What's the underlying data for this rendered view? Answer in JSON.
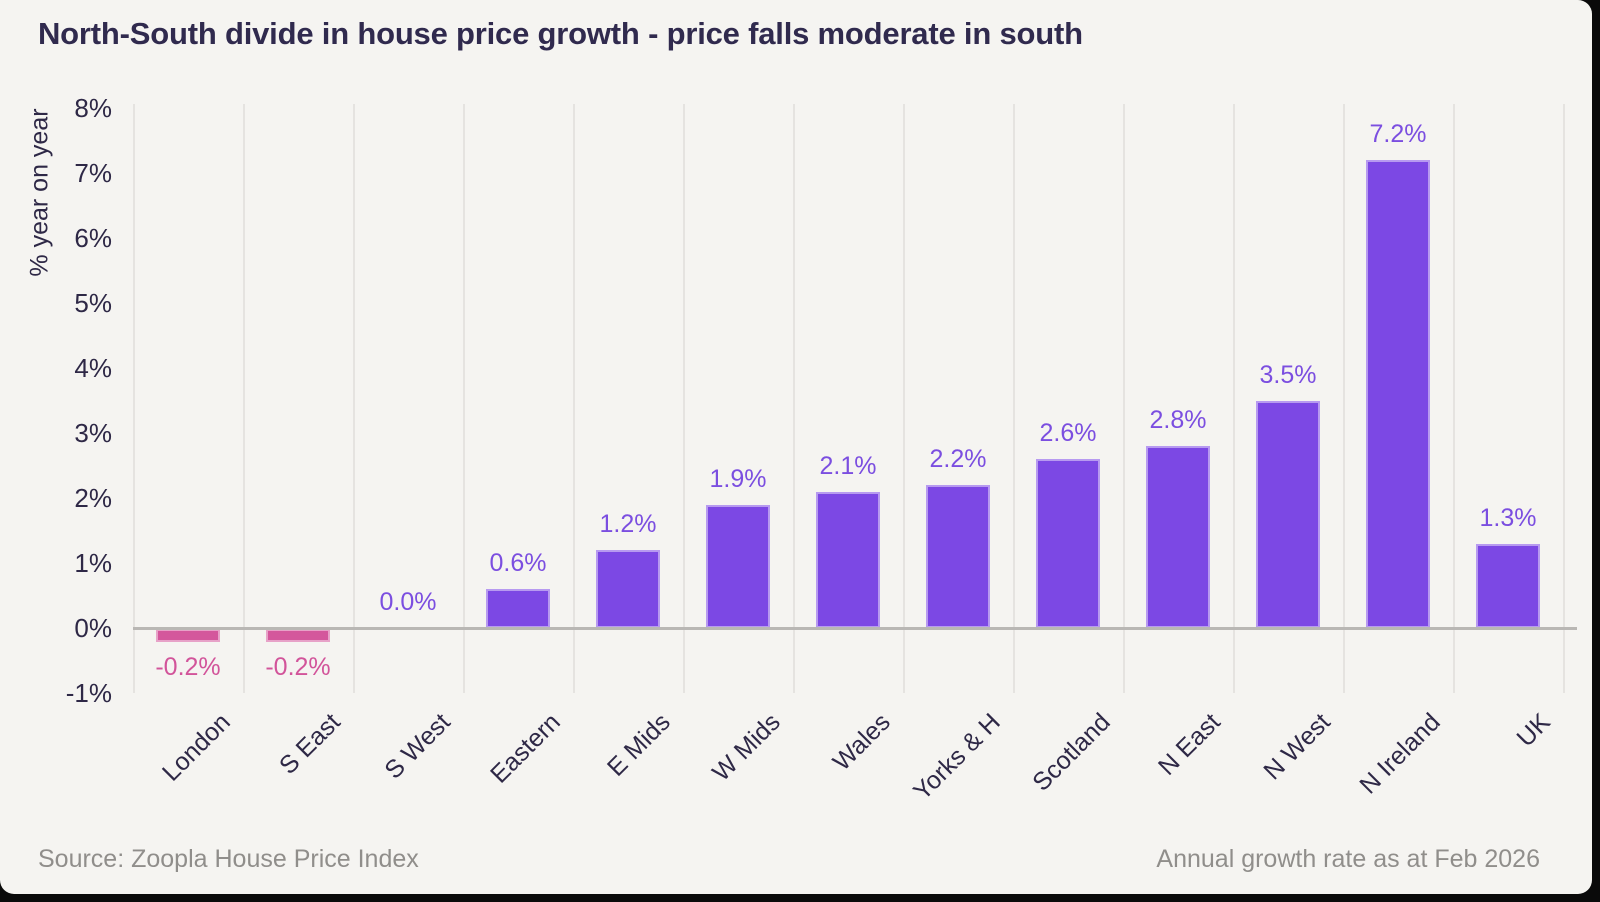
{
  "page": {
    "background": "#0a0a0a",
    "panel_background": "#f5f4f1"
  },
  "header": {
    "title": "North-South divide in house price growth - price falls moderate in south"
  },
  "footer": {
    "source": "Source: Zoopla House Price Index",
    "note": "Annual growth rate as at Feb 2026"
  },
  "chart_data": {
    "type": "bar",
    "title": "North-South divide in house price growth - price falls moderate in south",
    "xlabel": "",
    "ylabel": "% year on year",
    "categories": [
      "London",
      "S East",
      "S West",
      "Eastern",
      "E Mids",
      "W Mids",
      "Wales",
      "Yorks & H",
      "Scotland",
      "N East",
      "N West",
      "N Ireland",
      "UK"
    ],
    "values": [
      -0.2,
      -0.2,
      0.0,
      0.6,
      1.2,
      1.9,
      2.1,
      2.2,
      2.6,
      2.8,
      3.5,
      7.2,
      1.3
    ],
    "value_labels": [
      "-0.2%",
      "-0.2%",
      "0.0%",
      "0.6%",
      "1.2%",
      "1.9%",
      "2.1%",
      "2.2%",
      "2.6%",
      "2.8%",
      "3.5%",
      "7.2%",
      "1.3%"
    ],
    "yticks": [
      {
        "value": 8,
        "label": "8%"
      },
      {
        "value": 7,
        "label": "7%"
      },
      {
        "value": 6,
        "label": "6%"
      },
      {
        "value": 5,
        "label": "5%"
      },
      {
        "value": 4,
        "label": "4%"
      },
      {
        "value": 3,
        "label": "3%"
      },
      {
        "value": 2,
        "label": "2%"
      },
      {
        "value": 1,
        "label": "1%"
      },
      {
        "value": 0,
        "label": "0%"
      },
      {
        "value": -1,
        "label": "-1%"
      }
    ],
    "ylim": [
      -1,
      8
    ],
    "grid": "vertical-category-separators",
    "legend": "none",
    "colors": {
      "positive_bar": "#7c48e4",
      "negative_bar": "#d4579c",
      "positive_label": "#7b4ee0",
      "negative_label": "#d2549a",
      "gridline": "#e5e3e0",
      "zero_line": "#b9b7b4",
      "axis_text": "#2e2846",
      "title_text": "#302a4e",
      "footer_text": "#908e8b"
    }
  }
}
